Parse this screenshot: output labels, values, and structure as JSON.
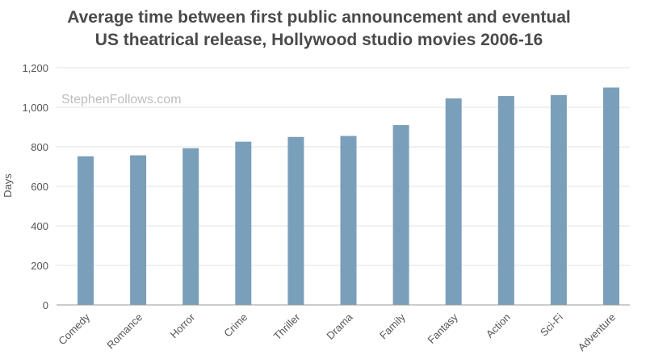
{
  "chart_data": {
    "type": "bar",
    "title_lines": [
      "Average time between first public announcement and eventual",
      "US theatrical release, Hollywood studio movies 2006-16"
    ],
    "watermark": "StephenFollows.com",
    "xlabel": "",
    "ylabel": "Days",
    "ylim": [
      0,
      1200
    ],
    "yticks": [
      0,
      200,
      400,
      600,
      800,
      1000,
      1200
    ],
    "ytick_labels": [
      "0",
      "200",
      "400",
      "600",
      "800",
      "1,000",
      "1,200"
    ],
    "grid": true,
    "categories": [
      "Comedy",
      "Romance",
      "Horror",
      "Crime",
      "Thriller",
      "Drama",
      "Family",
      "Fantasy",
      "Action",
      "Sci-Fi",
      "Adventure"
    ],
    "values": [
      752,
      757,
      793,
      826,
      850,
      855,
      910,
      1045,
      1057,
      1062,
      1100
    ],
    "bar_color": "#7a9fbb"
  }
}
